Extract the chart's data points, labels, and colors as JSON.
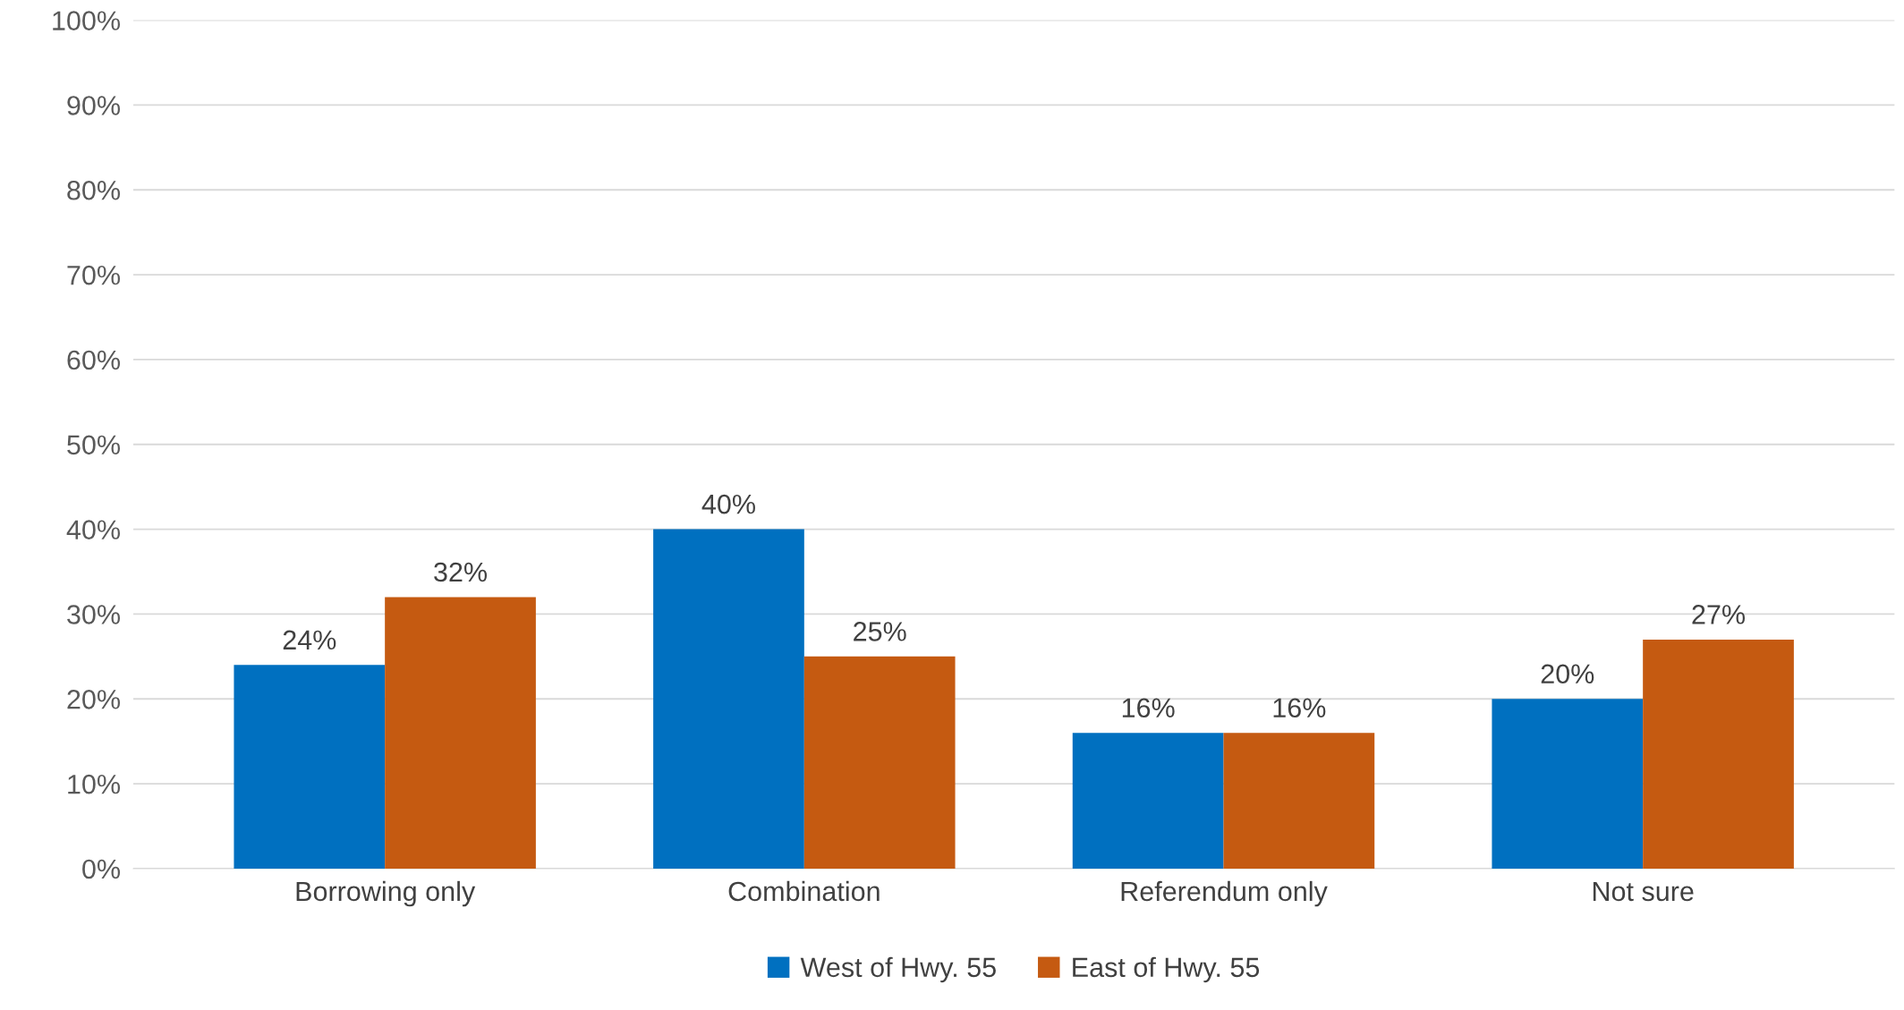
{
  "chart_data": {
    "type": "bar",
    "categories": [
      "Borrowing only",
      "Combination",
      "Referendum only",
      "Not sure"
    ],
    "series": [
      {
        "name": "West of Hwy. 55",
        "color": "#0070c0",
        "values": [
          24,
          40,
          16,
          20
        ],
        "value_labels": [
          "24%",
          "40%",
          "16%",
          "20%"
        ]
      },
      {
        "name": "East of Hwy. 55",
        "color": "#c55a11",
        "values": [
          32,
          25,
          16,
          27
        ],
        "value_labels": [
          "32%",
          "25%",
          "16%",
          "27%"
        ]
      }
    ],
    "ylim": [
      0,
      100
    ],
    "yticks": [
      {
        "value": 0,
        "label": "0%"
      },
      {
        "value": 10,
        "label": "10%"
      },
      {
        "value": 20,
        "label": "20%"
      },
      {
        "value": 30,
        "label": "30%"
      },
      {
        "value": 40,
        "label": "40%"
      },
      {
        "value": 50,
        "label": "50%"
      },
      {
        "value": 60,
        "label": "60%"
      },
      {
        "value": 70,
        "label": "70%"
      },
      {
        "value": 80,
        "label": "80%"
      },
      {
        "value": 90,
        "label": "90%"
      },
      {
        "value": 100,
        "label": "100%"
      }
    ],
    "grid": "y",
    "legend": "bottom"
  }
}
